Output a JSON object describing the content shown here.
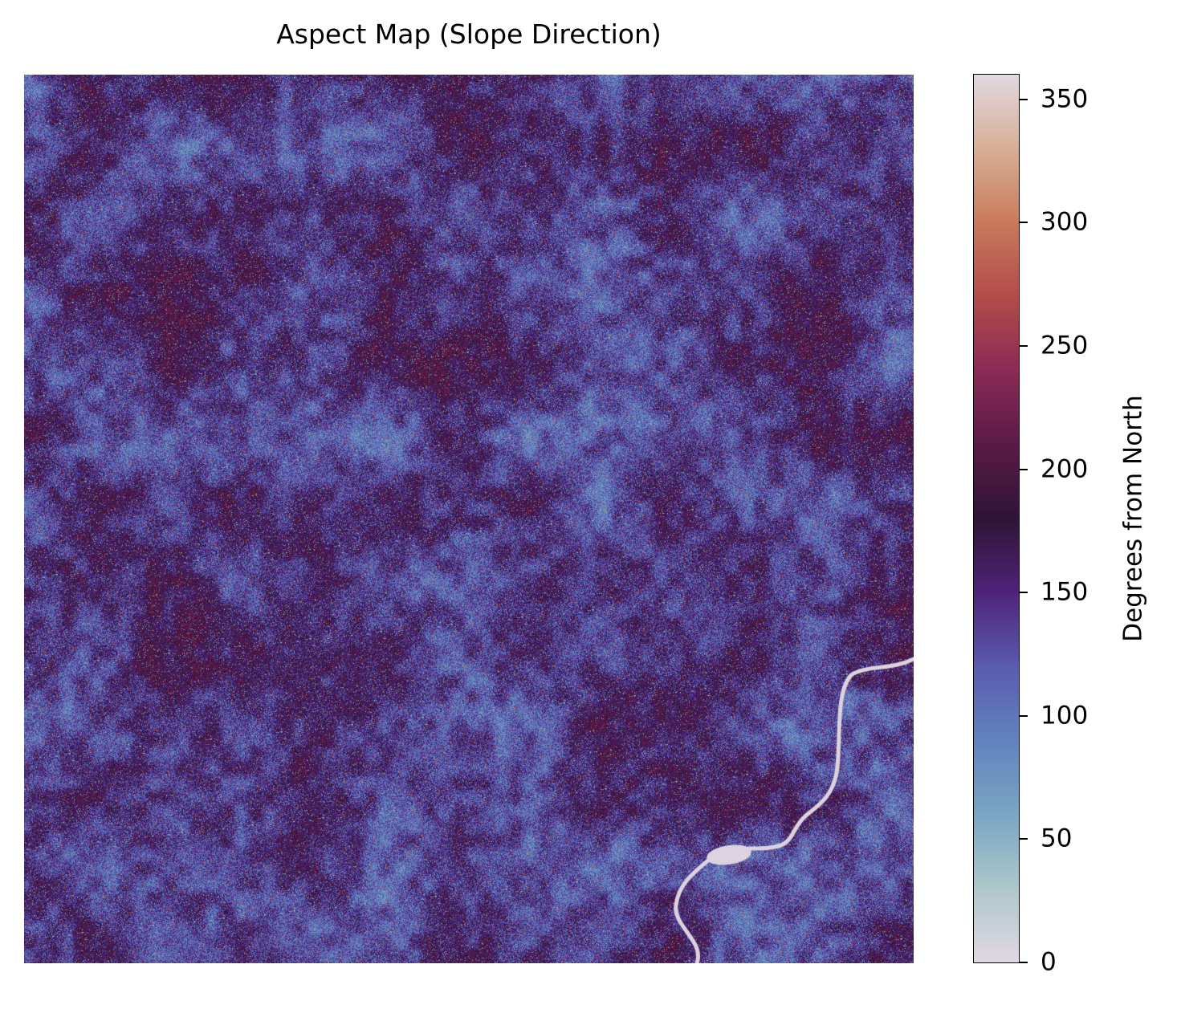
{
  "chart_data": {
    "type": "heatmap",
    "title": "Aspect Map (Slope Direction)",
    "colorbar": {
      "label": "Degrees from North",
      "range": [
        0,
        360
      ],
      "ticks": [
        0,
        50,
        100,
        150,
        200,
        250,
        300,
        350
      ],
      "tick_labels": [
        "0",
        "50",
        "100",
        "150",
        "200",
        "250",
        "300",
        "350"
      ],
      "colormap": "twilight (first half)",
      "color_stops": [
        {
          "value": 0,
          "color": "#e1d8e2"
        },
        {
          "value": 30,
          "color": "#aec7cb"
        },
        {
          "value": 60,
          "color": "#7aa5c4"
        },
        {
          "value": 90,
          "color": "#6183bd"
        },
        {
          "value": 120,
          "color": "#5a5bb0"
        },
        {
          "value": 150,
          "color": "#4f2379"
        },
        {
          "value": 180,
          "color": "#2f1436"
        },
        {
          "value": 210,
          "color": "#5a1a48"
        },
        {
          "value": 240,
          "color": "#8b2a55"
        },
        {
          "value": 270,
          "color": "#b24c4a"
        },
        {
          "value": 300,
          "color": "#c97a5b"
        },
        {
          "value": 330,
          "color": "#d7af94"
        },
        {
          "value": 360,
          "color": "#e1d8e2"
        }
      ]
    },
    "axes_visible": false,
    "grid": false,
    "dominant_aspect_range": [
      100,
      200
    ],
    "features": [
      "ridge and valley texture",
      "river channel (light) in lower right"
    ]
  }
}
